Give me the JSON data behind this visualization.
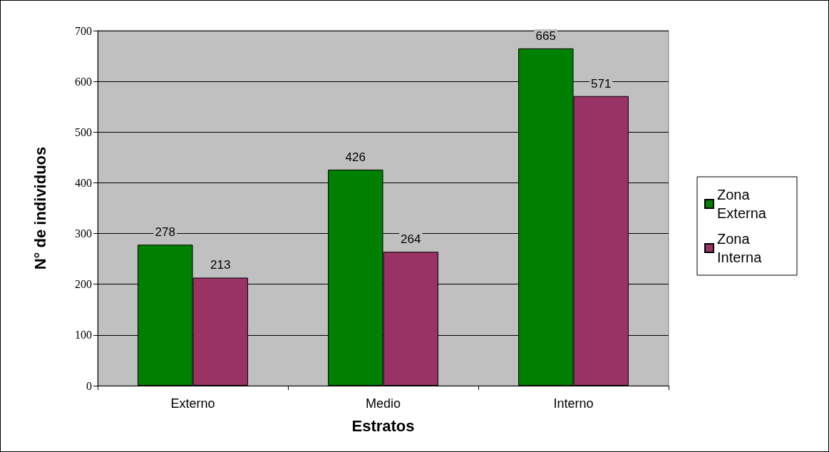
{
  "chart_data": {
    "type": "bar",
    "xlabel": "Estratos",
    "ylabel": "N° de individuos",
    "categories": [
      "Externo",
      "Medio",
      "Interno"
    ],
    "series": [
      {
        "name": "Zona Externa",
        "color": "#008000",
        "values": [
          278,
          426,
          665
        ]
      },
      {
        "name": "Zona Interna",
        "color": "#993366",
        "values": [
          213,
          264,
          571
        ]
      }
    ],
    "ylim": [
      0,
      700
    ],
    "yticks": [
      0,
      100,
      200,
      300,
      400,
      500,
      600,
      700
    ],
    "grid": "y",
    "legend": "right",
    "data_labels": true
  }
}
